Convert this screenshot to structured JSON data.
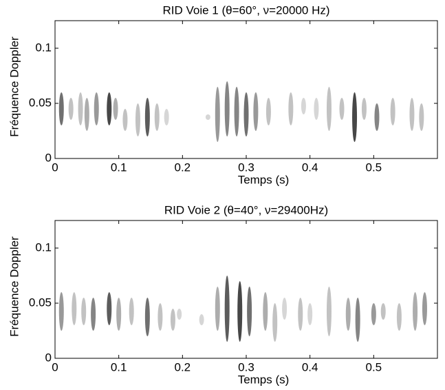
{
  "chart_data": [
    {
      "type": "spectrogram",
      "title": "RID Voie 1 (θ=60°, ν=20000 Hz)",
      "xlabel": "Temps (s)",
      "ylabel": "Fréquence Doppler",
      "xlim": [
        0,
        0.6
      ],
      "ylim": [
        0,
        0.125
      ],
      "xticks": [
        0,
        0.1,
        0.2,
        0.3,
        0.4,
        0.5
      ],
      "yticks": [
        0,
        0.05,
        0.1
      ],
      "x": [
        0.01,
        0.025,
        0.04,
        0.05,
        0.065,
        0.085,
        0.095,
        0.11,
        0.13,
        0.145,
        0.16,
        0.175,
        0.24,
        0.255,
        0.27,
        0.285,
        0.3,
        0.315,
        0.335,
        0.37,
        0.39,
        0.41,
        0.43,
        0.45,
        0.47,
        0.485,
        0.505,
        0.53,
        0.56,
        0.575
      ],
      "y_low": [
        0.03,
        0.035,
        0.03,
        0.025,
        0.03,
        0.03,
        0.035,
        0.025,
        0.02,
        0.02,
        0.025,
        0.03,
        0.035,
        0.015,
        0.02,
        0.02,
        0.02,
        0.025,
        0.03,
        0.03,
        0.04,
        0.035,
        0.025,
        0.035,
        0.015,
        0.035,
        0.025,
        0.03,
        0.025,
        0.025
      ],
      "y_high": [
        0.06,
        0.055,
        0.06,
        0.055,
        0.06,
        0.06,
        0.055,
        0.045,
        0.05,
        0.055,
        0.05,
        0.045,
        0.04,
        0.065,
        0.07,
        0.065,
        0.06,
        0.06,
        0.055,
        0.06,
        0.055,
        0.055,
        0.065,
        0.055,
        0.06,
        0.055,
        0.05,
        0.055,
        0.055,
        0.05
      ],
      "values": [
        0.7,
        0.3,
        0.3,
        0.4,
        0.5,
        0.9,
        0.4,
        0.3,
        0.3,
        0.8,
        0.3,
        0.2,
        0.2,
        0.5,
        0.6,
        0.6,
        0.7,
        0.5,
        0.3,
        0.3,
        0.2,
        0.2,
        0.3,
        0.3,
        0.9,
        0.3,
        0.6,
        0.3,
        0.3,
        0.3
      ]
    },
    {
      "type": "spectrogram",
      "title": "RID Voie 2 (θ=40°, ν=29400Hz)",
      "xlabel": "Temps (s)",
      "ylabel": "Fréquence Doppler",
      "xlim": [
        0,
        0.6
      ],
      "ylim": [
        0,
        0.125
      ],
      "xticks": [
        0,
        0.1,
        0.2,
        0.3,
        0.4,
        0.5
      ],
      "yticks": [
        0,
        0.05,
        0.1
      ],
      "x": [
        0.01,
        0.03,
        0.045,
        0.06,
        0.085,
        0.1,
        0.12,
        0.145,
        0.165,
        0.185,
        0.195,
        0.23,
        0.255,
        0.27,
        0.29,
        0.305,
        0.33,
        0.345,
        0.36,
        0.385,
        0.4,
        0.43,
        0.46,
        0.475,
        0.5,
        0.515,
        0.54,
        0.565,
        0.58
      ],
      "y_low": [
        0.025,
        0.03,
        0.03,
        0.025,
        0.03,
        0.025,
        0.03,
        0.02,
        0.025,
        0.025,
        0.035,
        0.03,
        0.025,
        0.015,
        0.015,
        0.02,
        0.025,
        0.015,
        0.035,
        0.025,
        0.03,
        0.02,
        0.025,
        0.015,
        0.03,
        0.035,
        0.025,
        0.025,
        0.03
      ],
      "y_high": [
        0.06,
        0.06,
        0.055,
        0.055,
        0.06,
        0.055,
        0.055,
        0.055,
        0.05,
        0.045,
        0.045,
        0.04,
        0.065,
        0.075,
        0.07,
        0.065,
        0.06,
        0.05,
        0.055,
        0.055,
        0.05,
        0.065,
        0.055,
        0.055,
        0.05,
        0.05,
        0.05,
        0.06,
        0.06
      ],
      "values": [
        0.5,
        0.3,
        0.3,
        0.6,
        0.8,
        0.4,
        0.3,
        0.7,
        0.3,
        0.3,
        0.2,
        0.2,
        0.4,
        0.8,
        0.9,
        0.7,
        0.4,
        0.3,
        0.2,
        0.3,
        0.2,
        0.3,
        0.4,
        0.6,
        0.5,
        0.3,
        0.3,
        0.4,
        0.5
      ]
    }
  ]
}
